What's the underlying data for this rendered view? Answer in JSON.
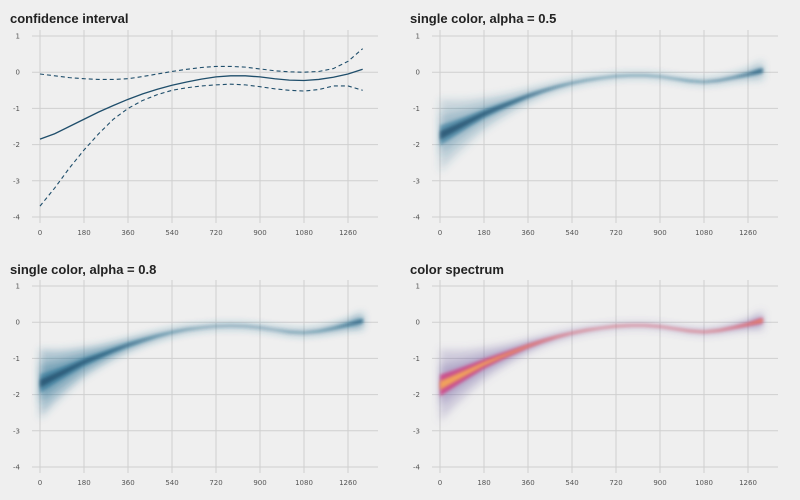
{
  "colors": {
    "background": "#efefef",
    "grid": "#cfcfcf",
    "line": "#1f4e6b",
    "blue_fill": "#2f7596",
    "spectrum_core": "#f2a65a",
    "spectrum_mid": "#d03a7e",
    "spectrum_outer": "#7b6aa8"
  },
  "chart_data": [
    {
      "type": "line",
      "title": "confidence interval",
      "xlim": [
        0,
        1350
      ],
      "ylim": [
        -4,
        1
      ],
      "xticks": [
        0,
        180,
        360,
        540,
        720,
        900,
        1080,
        1260
      ],
      "yticks": [
        1,
        0,
        -1,
        -2,
        -3,
        -4
      ],
      "grid": true,
      "x": [
        0,
        60,
        120,
        180,
        240,
        300,
        360,
        420,
        480,
        540,
        600,
        660,
        720,
        780,
        840,
        900,
        960,
        1020,
        1080,
        1140,
        1200,
        1260,
        1320
      ],
      "series": [
        {
          "style": "solid",
          "values": [
            -1.85,
            -1.7,
            -1.5,
            -1.3,
            -1.1,
            -0.92,
            -0.75,
            -0.6,
            -0.47,
            -0.36,
            -0.27,
            -0.19,
            -0.13,
            -0.1,
            -0.1,
            -0.13,
            -0.18,
            -0.22,
            -0.23,
            -0.2,
            -0.14,
            -0.05,
            0.08
          ]
        },
        {
          "style": "dashed",
          "values": [
            -0.05,
            -0.1,
            -0.15,
            -0.18,
            -0.2,
            -0.2,
            -0.18,
            -0.12,
            -0.05,
            0.02,
            0.08,
            0.13,
            0.16,
            0.16,
            0.14,
            0.09,
            0.04,
            0.01,
            0.0,
            0.02,
            0.1,
            0.3,
            0.65
          ]
        },
        {
          "style": "dashed",
          "values": [
            -3.7,
            -3.2,
            -2.65,
            -2.15,
            -1.7,
            -1.3,
            -1.0,
            -0.78,
            -0.62,
            -0.5,
            -0.43,
            -0.38,
            -0.35,
            -0.33,
            -0.35,
            -0.4,
            -0.46,
            -0.5,
            -0.52,
            -0.48,
            -0.38,
            -0.38,
            -0.5
          ]
        }
      ]
    },
    {
      "type": "area",
      "title": "single color, alpha = 0.5",
      "xlim": [
        0,
        1350
      ],
      "ylim": [
        -4,
        1
      ],
      "xticks": [
        0,
        180,
        360,
        540,
        720,
        900,
        1080,
        1260
      ],
      "yticks": [
        1,
        0,
        -1,
        -2,
        -3,
        -4
      ],
      "grid": true,
      "x": [
        0,
        60,
        120,
        180,
        240,
        300,
        360,
        420,
        480,
        540,
        600,
        660,
        720,
        780,
        840,
        900,
        960,
        1020,
        1080,
        1140,
        1200,
        1260,
        1320
      ],
      "center": [
        -1.75,
        -1.55,
        -1.35,
        -1.15,
        -0.98,
        -0.82,
        -0.66,
        -0.52,
        -0.4,
        -0.3,
        -0.22,
        -0.16,
        -0.11,
        -0.09,
        -0.09,
        -0.12,
        -0.18,
        -0.24,
        -0.27,
        -0.23,
        -0.15,
        -0.06,
        0.05
      ],
      "spread": [
        1.0,
        0.78,
        0.6,
        0.45,
        0.34,
        0.25,
        0.18,
        0.13,
        0.1,
        0.08,
        0.07,
        0.06,
        0.06,
        0.06,
        0.06,
        0.06,
        0.06,
        0.07,
        0.07,
        0.08,
        0.1,
        0.15,
        0.28
      ],
      "fill_alpha": 0.5,
      "color": "single"
    },
    {
      "type": "area",
      "title": "single color, alpha = 0.8",
      "xlim": [
        0,
        1350
      ],
      "ylim": [
        -4,
        1
      ],
      "xticks": [
        0,
        180,
        360,
        540,
        720,
        900,
        1080,
        1260
      ],
      "yticks": [
        1,
        0,
        -1,
        -2,
        -3,
        -4
      ],
      "grid": true,
      "x": [
        0,
        60,
        120,
        180,
        240,
        300,
        360,
        420,
        480,
        540,
        600,
        660,
        720,
        780,
        840,
        900,
        960,
        1020,
        1080,
        1140,
        1200,
        1260,
        1320
      ],
      "center": [
        -1.7,
        -1.5,
        -1.3,
        -1.1,
        -0.94,
        -0.78,
        -0.63,
        -0.5,
        -0.38,
        -0.28,
        -0.2,
        -0.15,
        -0.11,
        -0.1,
        -0.11,
        -0.15,
        -0.21,
        -0.27,
        -0.29,
        -0.25,
        -0.17,
        -0.07,
        0.04
      ],
      "spread": [
        0.95,
        0.72,
        0.55,
        0.4,
        0.3,
        0.22,
        0.16,
        0.12,
        0.09,
        0.07,
        0.06,
        0.05,
        0.05,
        0.05,
        0.05,
        0.05,
        0.05,
        0.06,
        0.06,
        0.07,
        0.09,
        0.13,
        0.24
      ],
      "fill_alpha": 0.8,
      "color": "single"
    },
    {
      "type": "area",
      "title": "color spectrum",
      "xlim": [
        0,
        1350
      ],
      "ylim": [
        -4,
        1
      ],
      "xticks": [
        0,
        180,
        360,
        540,
        720,
        900,
        1080,
        1260
      ],
      "yticks": [
        1,
        0,
        -1,
        -2,
        -3,
        -4
      ],
      "grid": true,
      "x": [
        0,
        60,
        120,
        180,
        240,
        300,
        360,
        420,
        480,
        540,
        600,
        660,
        720,
        780,
        840,
        900,
        960,
        1020,
        1080,
        1140,
        1200,
        1260,
        1320
      ],
      "center": [
        -1.75,
        -1.55,
        -1.35,
        -1.15,
        -0.98,
        -0.82,
        -0.66,
        -0.52,
        -0.4,
        -0.3,
        -0.22,
        -0.16,
        -0.11,
        -0.09,
        -0.09,
        -0.12,
        -0.18,
        -0.24,
        -0.27,
        -0.23,
        -0.15,
        -0.06,
        0.05
      ],
      "spread": [
        1.0,
        0.78,
        0.6,
        0.45,
        0.34,
        0.25,
        0.18,
        0.13,
        0.1,
        0.08,
        0.07,
        0.06,
        0.06,
        0.06,
        0.06,
        0.06,
        0.06,
        0.07,
        0.07,
        0.08,
        0.1,
        0.15,
        0.28
      ],
      "fill_alpha": 0.5,
      "color": "spectrum"
    }
  ]
}
